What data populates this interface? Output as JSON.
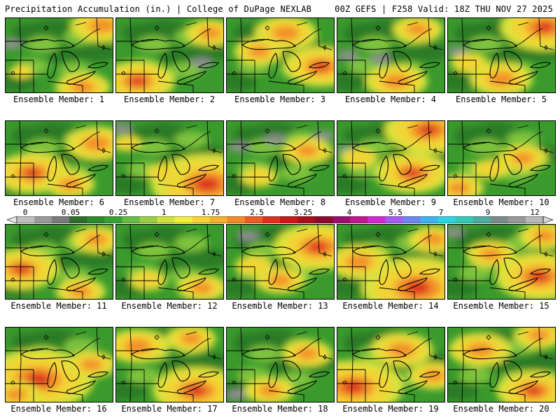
{
  "header": {
    "left": "Precipitation Accumulation (in.) | College of DuPage NEXLAB",
    "right": "00Z GEFS | F258 Valid: 18Z THU NOV 27 2025"
  },
  "legend": {
    "labels": [
      "0",
      "0.05",
      "0.25",
      "1",
      "1.75",
      "2.5",
      "3.25",
      "4",
      "5.5",
      "7",
      "9",
      "12"
    ],
    "colors": [
      "#e6e6e6",
      "#bfbfbf",
      "#9a9a9a",
      "#7a7a7a",
      "#2d6e2a",
      "#2f8a2e",
      "#3aa034",
      "#66bb44",
      "#9acd45",
      "#cfe03f",
      "#f2f03a",
      "#f6d235",
      "#f4b02f",
      "#f08a2a",
      "#ea5c24",
      "#e2301f",
      "#cc1818",
      "#a8101a",
      "#8a0b2c",
      "#9a1070",
      "#c0198f",
      "#d12bd0",
      "#a65cf0",
      "#6d86f2",
      "#3fb1f2",
      "#2bd6e2",
      "#36c8b4",
      "#4faaa0",
      "#7a8c88",
      "#989898",
      "#b8b8b8",
      "#d6d6d6"
    ]
  },
  "members": [
    {
      "caption": "Ensemble Member: 1",
      "hot": [
        [
          0.15,
          0.72,
          0.1
        ],
        [
          0.72,
          0.93,
          0.22
        ],
        [
          0.9,
          0.1,
          0.25
        ]
      ],
      "gray": [
        [
          0.05,
          0.35
        ]
      ]
    },
    {
      "caption": "Ensemble Member: 2",
      "hot": [
        [
          0.2,
          0.85,
          0.3
        ],
        [
          0.88,
          0.2,
          0.2
        ]
      ],
      "gray": [
        [
          0.8,
          0.6
        ]
      ]
    },
    {
      "caption": "Ensemble Member: 3",
      "hot": [
        [
          0.55,
          0.2,
          0.25
        ],
        [
          0.88,
          0.65,
          0.3
        ],
        [
          0.3,
          0.45,
          0.2
        ]
      ],
      "gray": []
    },
    {
      "caption": "Ensemble Member: 4",
      "hot": [
        [
          0.55,
          0.85,
          0.25
        ],
        [
          0.75,
          0.15,
          0.2
        ]
      ],
      "gray": [
        [
          0.1,
          0.5
        ],
        [
          0.4,
          0.55
        ]
      ]
    },
    {
      "caption": "Ensemble Member: 5",
      "hot": [
        [
          0.9,
          0.12,
          0.35
        ],
        [
          0.5,
          0.82,
          0.25
        ],
        [
          0.2,
          0.6,
          0.15
        ]
      ],
      "gray": [
        [
          0.1,
          0.45
        ]
      ]
    },
    {
      "caption": "Ensemble Member: 6",
      "hot": [
        [
          0.25,
          0.7,
          0.3
        ],
        [
          0.85,
          0.3,
          0.25
        ],
        [
          0.6,
          0.85,
          0.2
        ]
      ],
      "gray": []
    },
    {
      "caption": "Ensemble Member: 7",
      "hot": [
        [
          0.85,
          0.85,
          0.45
        ],
        [
          0.45,
          0.7,
          0.15
        ],
        [
          0.1,
          0.3,
          0.12
        ]
      ],
      "gray": [
        [
          0.05,
          0.1
        ]
      ]
    },
    {
      "caption": "Ensemble Member: 8",
      "hot": [
        [
          0.75,
          0.4,
          0.2
        ],
        [
          0.3,
          0.75,
          0.15
        ]
      ],
      "gray": [
        [
          0.12,
          0.35
        ],
        [
          0.45,
          0.25
        ],
        [
          0.9,
          0.2
        ]
      ]
    },
    {
      "caption": "Ensemble Member: 9",
      "hot": [
        [
          0.85,
          0.12,
          0.35
        ],
        [
          0.7,
          0.7,
          0.3
        ],
        [
          0.2,
          0.5,
          0.15
        ]
      ],
      "gray": [
        [
          0.1,
          0.4
        ]
      ]
    },
    {
      "caption": "Ensemble Member: 10",
      "hot": [
        [
          0.1,
          0.9,
          0.2
        ],
        [
          0.7,
          0.5,
          0.2
        ],
        [
          0.4,
          0.65,
          0.15
        ]
      ],
      "gray": []
    },
    {
      "caption": "Ensemble Member: 11",
      "hot": [
        [
          0.15,
          0.6,
          0.3
        ],
        [
          0.85,
          0.2,
          0.2
        ],
        [
          0.7,
          0.9,
          0.2
        ]
      ],
      "gray": []
    },
    {
      "caption": "Ensemble Member: 12",
      "hot": [
        [
          0.8,
          0.85,
          0.2
        ],
        [
          0.3,
          0.75,
          0.15
        ]
      ],
      "gray": []
    },
    {
      "caption": "Ensemble Member: 13",
      "hot": [
        [
          0.85,
          0.3,
          0.35
        ],
        [
          0.5,
          0.75,
          0.2
        ],
        [
          0.25,
          0.55,
          0.15
        ]
      ],
      "gray": [
        [
          0.2,
          0.15
        ]
      ]
    },
    {
      "caption": "Ensemble Member: 14",
      "hot": [
        [
          0.75,
          0.85,
          0.45
        ],
        [
          0.2,
          0.5,
          0.25
        ],
        [
          0.9,
          0.2,
          0.2
        ]
      ],
      "gray": [
        [
          0.05,
          0.45
        ]
      ]
    },
    {
      "caption": "Ensemble Member: 15",
      "hot": [
        [
          0.85,
          0.7,
          0.35
        ],
        [
          0.4,
          0.4,
          0.2
        ],
        [
          0.9,
          0.15,
          0.2
        ]
      ],
      "gray": [
        [
          0.05,
          0.1
        ]
      ]
    },
    {
      "caption": "Ensemble Member: 16",
      "hot": [
        [
          0.3,
          0.7,
          0.45
        ],
        [
          0.1,
          0.9,
          0.2
        ],
        [
          0.8,
          0.5,
          0.2
        ]
      ],
      "gray": []
    },
    {
      "caption": "Ensemble Member: 17",
      "hot": [
        [
          0.75,
          0.85,
          0.35
        ],
        [
          0.2,
          0.25,
          0.25
        ],
        [
          0.7,
          0.15,
          0.2
        ]
      ],
      "gray": []
    },
    {
      "caption": "Ensemble Member: 18",
      "hot": [
        [
          0.75,
          0.35,
          0.2
        ],
        [
          0.4,
          0.85,
          0.2
        ]
      ],
      "gray": [
        [
          0.1,
          0.9
        ]
      ]
    },
    {
      "caption": "Ensemble Member: 19",
      "hot": [
        [
          0.15,
          0.8,
          0.4
        ],
        [
          0.6,
          0.3,
          0.25
        ],
        [
          0.9,
          0.65,
          0.2
        ]
      ],
      "gray": []
    },
    {
      "caption": "Ensemble Member: 20",
      "hot": [
        [
          0.8,
          0.85,
          0.3
        ],
        [
          0.3,
          0.3,
          0.25
        ],
        [
          0.85,
          0.1,
          0.2
        ]
      ],
      "gray": [
        [
          0.4,
          0.2
        ]
      ]
    }
  ]
}
